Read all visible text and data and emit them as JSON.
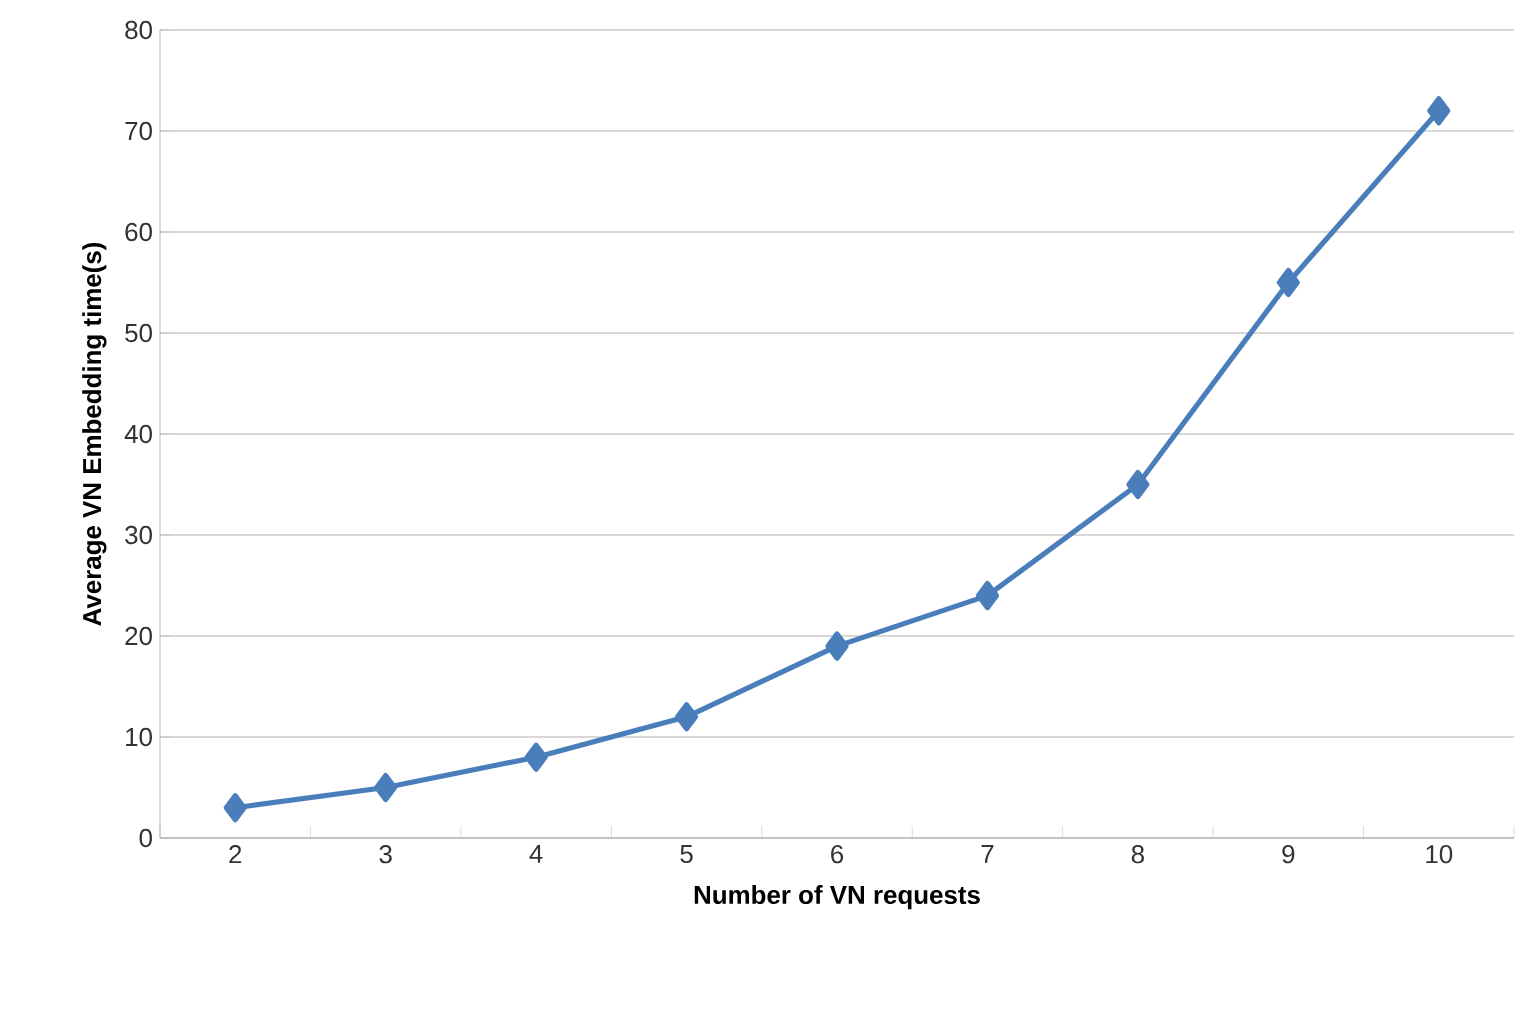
{
  "chart_data": {
    "type": "line",
    "xlabel": "Number of VN requests",
    "ylabel": "Average VN Embedding time(s)",
    "categories": [
      "2",
      "3",
      "4",
      "5",
      "6",
      "7",
      "8",
      "9",
      "10"
    ],
    "series": [
      {
        "color": "#4a7ebb",
        "values": [
          3,
          5,
          8,
          12,
          19,
          24,
          35,
          55,
          72
        ]
      }
    ],
    "ylim": [
      0,
      80
    ],
    "yticks": [
      0,
      10,
      20,
      30,
      40,
      50,
      60,
      70,
      80
    ],
    "grid": "y",
    "marker": "diamond",
    "line_style": "solid"
  }
}
